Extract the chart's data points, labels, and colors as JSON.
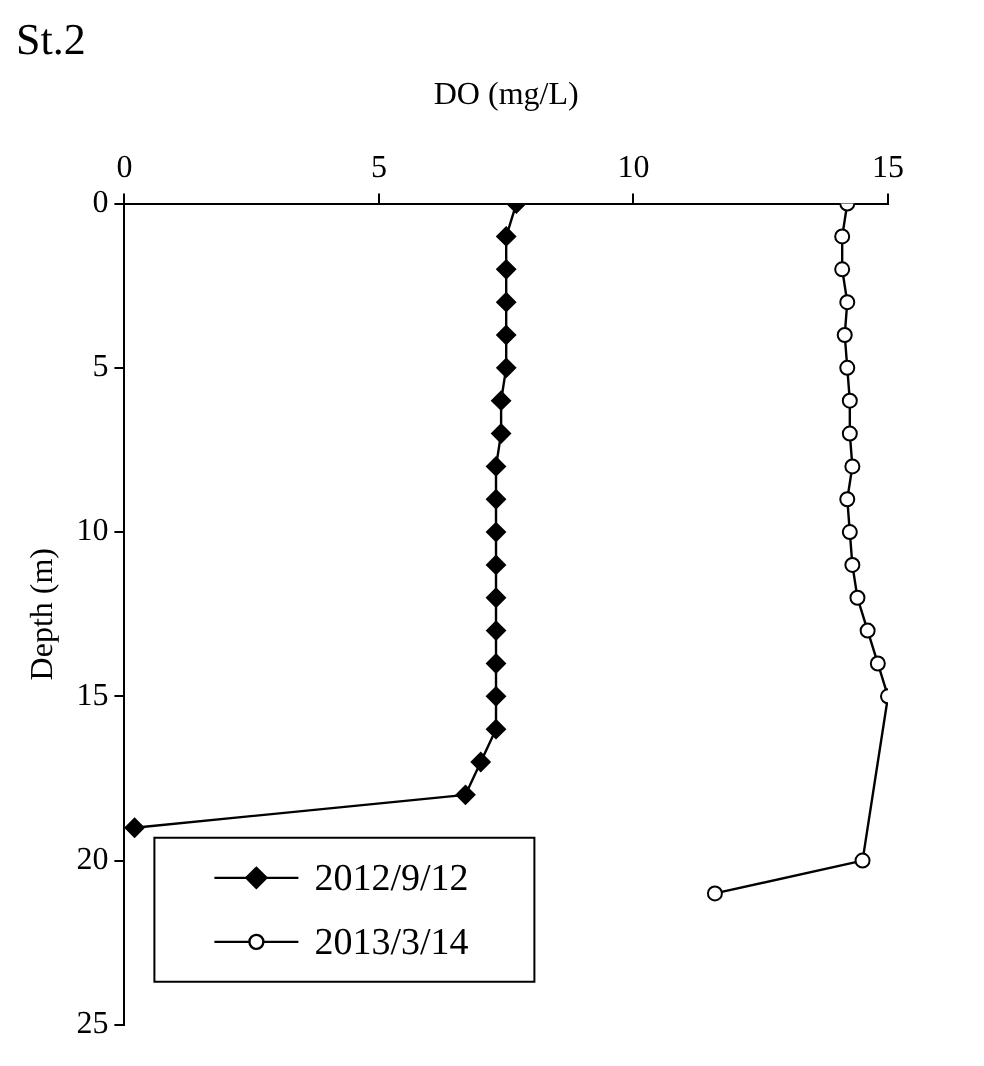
{
  "chart_data": {
    "type": "line",
    "title": "St.2",
    "xlabel": "DO (mg/L)",
    "ylabel": "Depth (m)",
    "xlim": [
      0,
      15
    ],
    "xticks": [
      0,
      5,
      10,
      15
    ],
    "ylim": [
      25,
      0
    ],
    "yticks": [
      0,
      5,
      10,
      15,
      20,
      25
    ],
    "grid": false,
    "legend": "bottom left",
    "series": [
      {
        "name": "2012/9/12",
        "color": "#000000",
        "marker": "diamond",
        "x": [
          7.7,
          7.5,
          7.5,
          7.5,
          7.5,
          7.5,
          7.4,
          7.4,
          7.3,
          7.3,
          7.3,
          7.3,
          7.3,
          7.3,
          7.3,
          7.3,
          7.3,
          7.0,
          6.7,
          0.2
        ],
        "values": [
          0,
          1,
          2,
          3,
          4,
          5,
          6,
          7,
          8,
          9,
          10,
          11,
          12,
          13,
          14,
          15,
          16,
          17,
          18,
          19
        ]
      },
      {
        "name": "2013/3/14",
        "color": "#000000",
        "marker": "circle",
        "x": [
          14.2,
          14.1,
          14.1,
          14.2,
          14.15,
          14.2,
          14.25,
          14.25,
          14.3,
          14.2,
          14.25,
          14.3,
          14.4,
          14.6,
          14.8,
          15.0,
          14.5,
          11.6
        ],
        "values": [
          0,
          1,
          2,
          3,
          4,
          5,
          6,
          7,
          8,
          9,
          10,
          11,
          12,
          13,
          14,
          15,
          20,
          21
        ]
      }
    ]
  }
}
